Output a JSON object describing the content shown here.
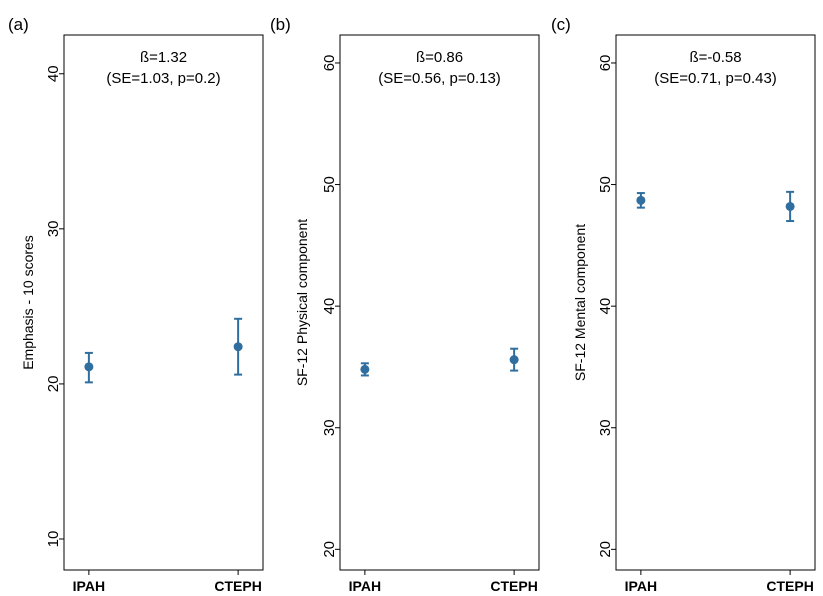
{
  "chart_data": [
    {
      "type": "scatter",
      "panel_label": "(a)",
      "ylabel": "Emphasis - 10 scores",
      "categories": [
        "IPAH",
        "CTEPH"
      ],
      "yticks": [
        10,
        20,
        30,
        40
      ],
      "ylim": [
        8,
        42.5
      ],
      "points": [
        {
          "category": "IPAH",
          "estimate": 21.1,
          "lower": 20.1,
          "upper": 22.0
        },
        {
          "category": "CTEPH",
          "estimate": 22.4,
          "lower": 20.6,
          "upper": 24.2
        }
      ],
      "annotation": [
        "ß=1.32",
        "(SE=1.03, p=0.2)"
      ],
      "grid": false,
      "legend": "none"
    },
    {
      "type": "scatter",
      "panel_label": "(b)",
      "ylabel": "SF-12 Physical component",
      "categories": [
        "IPAH",
        "CTEPH"
      ],
      "yticks": [
        20,
        30,
        40,
        50,
        60
      ],
      "ylim": [
        18.3,
        62.3
      ],
      "points": [
        {
          "category": "IPAH",
          "estimate": 34.8,
          "lower": 34.3,
          "upper": 35.3
        },
        {
          "category": "CTEPH",
          "estimate": 35.6,
          "lower": 34.7,
          "upper": 36.5
        }
      ],
      "annotation": [
        "ß=0.86",
        "(SE=0.56, p=0.13)"
      ],
      "grid": false,
      "legend": "none"
    },
    {
      "type": "scatter",
      "panel_label": "(c)",
      "ylabel": "SF-12 Mental component",
      "categories": [
        "IPAH",
        "CTEPH"
      ],
      "yticks": [
        20,
        30,
        40,
        50,
        60
      ],
      "ylim": [
        18.3,
        62.3
      ],
      "points": [
        {
          "category": "IPAH",
          "estimate": 48.7,
          "lower": 48.1,
          "upper": 49.3
        },
        {
          "category": "CTEPH",
          "estimate": 48.2,
          "lower": 47.0,
          "upper": 49.4
        }
      ],
      "annotation": [
        "ß=-0.58",
        "(SE=0.71, p=0.43)"
      ],
      "grid": false,
      "legend": "none"
    }
  ],
  "style": {
    "marker_color": "#2f6e9e",
    "axis_color": "#000000"
  }
}
